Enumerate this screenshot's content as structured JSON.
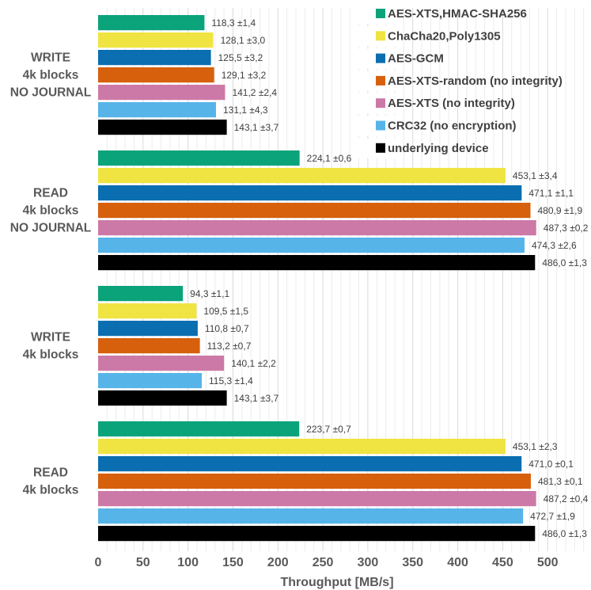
{
  "chart_data": {
    "type": "bar",
    "orientation": "horizontal",
    "xlabel": "Throughput [MB/s]",
    "xlim": [
      0,
      550
    ],
    "x_ticks": [
      0,
      50,
      100,
      150,
      200,
      250,
      300,
      350,
      400,
      450,
      500
    ],
    "grid": true,
    "legend_position": "top-right",
    "categories": [
      [
        "WRITE",
        "4k blocks",
        "NO JOURNAL"
      ],
      [
        "READ",
        "4k blocks",
        "NO JOURNAL"
      ],
      [
        "WRITE",
        "4k blocks"
      ],
      [
        "READ",
        "4k blocks"
      ]
    ],
    "series": [
      {
        "name": "AES-XTS,HMAC-SHA256",
        "color": "#0aa37a",
        "values": [
          118.3,
          224.1,
          94.3,
          223.7
        ],
        "labels": [
          "118,3 ±1,4",
          "224,1 ±0,6",
          "94,3 ±1,1",
          "223,7 ±0,7"
        ]
      },
      {
        "name": "ChaCha20,Poly1305",
        "color": "#efe442",
        "values": [
          128.1,
          453.1,
          109.5,
          453.1
        ],
        "labels": [
          "128,1 ±3,0",
          "453,1 ±3,4",
          "109,5 ±1,5",
          "453,1 ±2,3"
        ]
      },
      {
        "name": "AES-GCM",
        "color": "#0a6eb0",
        "values": [
          125.5,
          471.1,
          110.8,
          471.0
        ],
        "labels": [
          "125,5 ±3,2",
          "471,1 ±1,1",
          "110,8 ±0,7",
          "471,0 ±0,1"
        ]
      },
      {
        "name": "AES-XTS-random (no integrity)",
        "color": "#d6600c",
        "values": [
          129.1,
          480.9,
          113.2,
          481.3
        ],
        "labels": [
          "129,1 ±3,2",
          "480,9 ±1,9",
          "113,2 ±0,7",
          "481,3 ±0,1"
        ]
      },
      {
        "name": "AES-XTS (no integrity)",
        "color": "#cc79a7",
        "values": [
          141.2,
          487.3,
          140.1,
          487.2
        ],
        "labels": [
          "141,2 ±2,4",
          "487,3 ±0,2",
          "140,1 ±2,2",
          "487,2 ±0,4"
        ]
      },
      {
        "name": "CRC32 (no encryption)",
        "color": "#56b4e9",
        "values": [
          131.1,
          474.3,
          115.3,
          472.7
        ],
        "labels": [
          "131,1 ±4,3",
          "474,3 ±2,6",
          "115,3 ±1,4",
          "472,7 ±1,9"
        ]
      },
      {
        "name": "underlying device",
        "color": "#000000",
        "values": [
          143.1,
          486.0,
          143.1,
          486.0
        ],
        "labels": [
          "143,1 ±3,7",
          "486,0 ±1,3",
          "143,1 ±3,7",
          "486,0 ±1,3"
        ]
      }
    ]
  }
}
